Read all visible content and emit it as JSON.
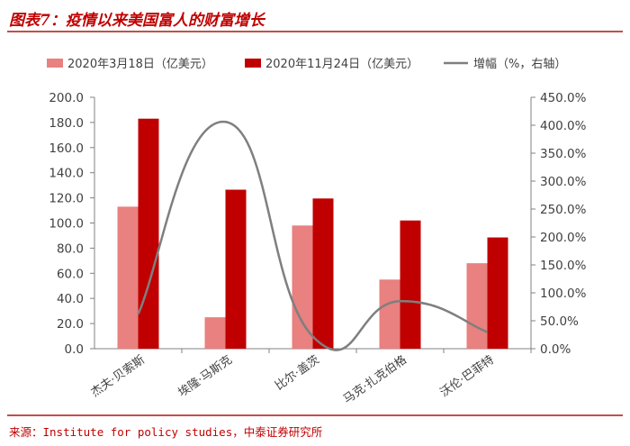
{
  "title": "图表7：疫情以来美国富人的财富增长",
  "source": "来源：Institute for policy studies，中泰证券研究所",
  "chart_data": {
    "type": "bar",
    "categories": [
      "杰夫·贝索斯",
      "埃隆·马斯克",
      "比尔·盖茨",
      "马克·扎克伯格",
      "沃伦·巴菲特"
    ],
    "series": [
      {
        "name": "2020年3月18日（亿美元）",
        "type": "bar",
        "axis": "left",
        "color": "#e8817f",
        "values": [
          113.0,
          25.0,
          98.0,
          55.0,
          68.0
        ]
      },
      {
        "name": "2020年11月24日（亿美元）",
        "type": "bar",
        "axis": "left",
        "color": "#c00000",
        "values": [
          183.0,
          126.5,
          119.5,
          102.0,
          88.5
        ]
      },
      {
        "name": "增幅（%，右轴）",
        "type": "line",
        "axis": "right",
        "color": "#7f7f7f",
        "values": [
          62.0,
          406.0,
          22.0,
          85.0,
          30.0
        ]
      }
    ],
    "y_left": {
      "ylim": [
        0,
        200
      ],
      "ticks": [
        "0.0",
        "20.0",
        "40.0",
        "60.0",
        "80.0",
        "100.0",
        "120.0",
        "140.0",
        "160.0",
        "180.0",
        "200.0"
      ]
    },
    "y_right": {
      "ylim": [
        0,
        450
      ],
      "ticks": [
        "0.0%",
        "50.0%",
        "100.0%",
        "150.0%",
        "200.0%",
        "250.0%",
        "300.0%",
        "350.0%",
        "400.0%",
        "450.0%"
      ]
    },
    "legend_position": "top",
    "grid": false
  }
}
